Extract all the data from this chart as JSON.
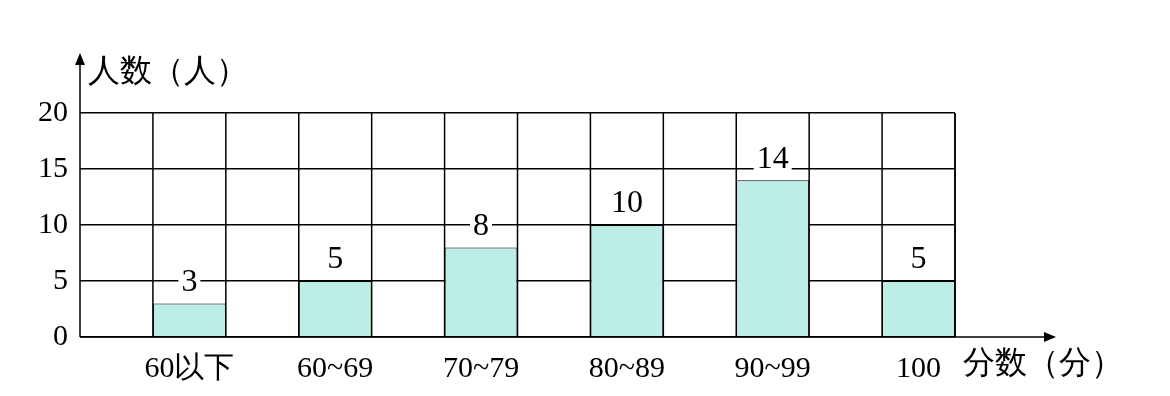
{
  "chart_data": {
    "type": "bar",
    "xlabel": "分数（分）",
    "ylabel": "人数（人）",
    "categories": [
      "60以下",
      "60~69",
      "70~79",
      "80~89",
      "90~99",
      "100"
    ],
    "values": [
      3,
      5,
      8,
      10,
      14,
      5
    ],
    "color": "#bdeee6",
    "ylim": [
      0,
      20
    ],
    "yticks": [
      0,
      5,
      10,
      15,
      20
    ],
    "grid": true,
    "data_labels": true,
    "legend": false
  }
}
